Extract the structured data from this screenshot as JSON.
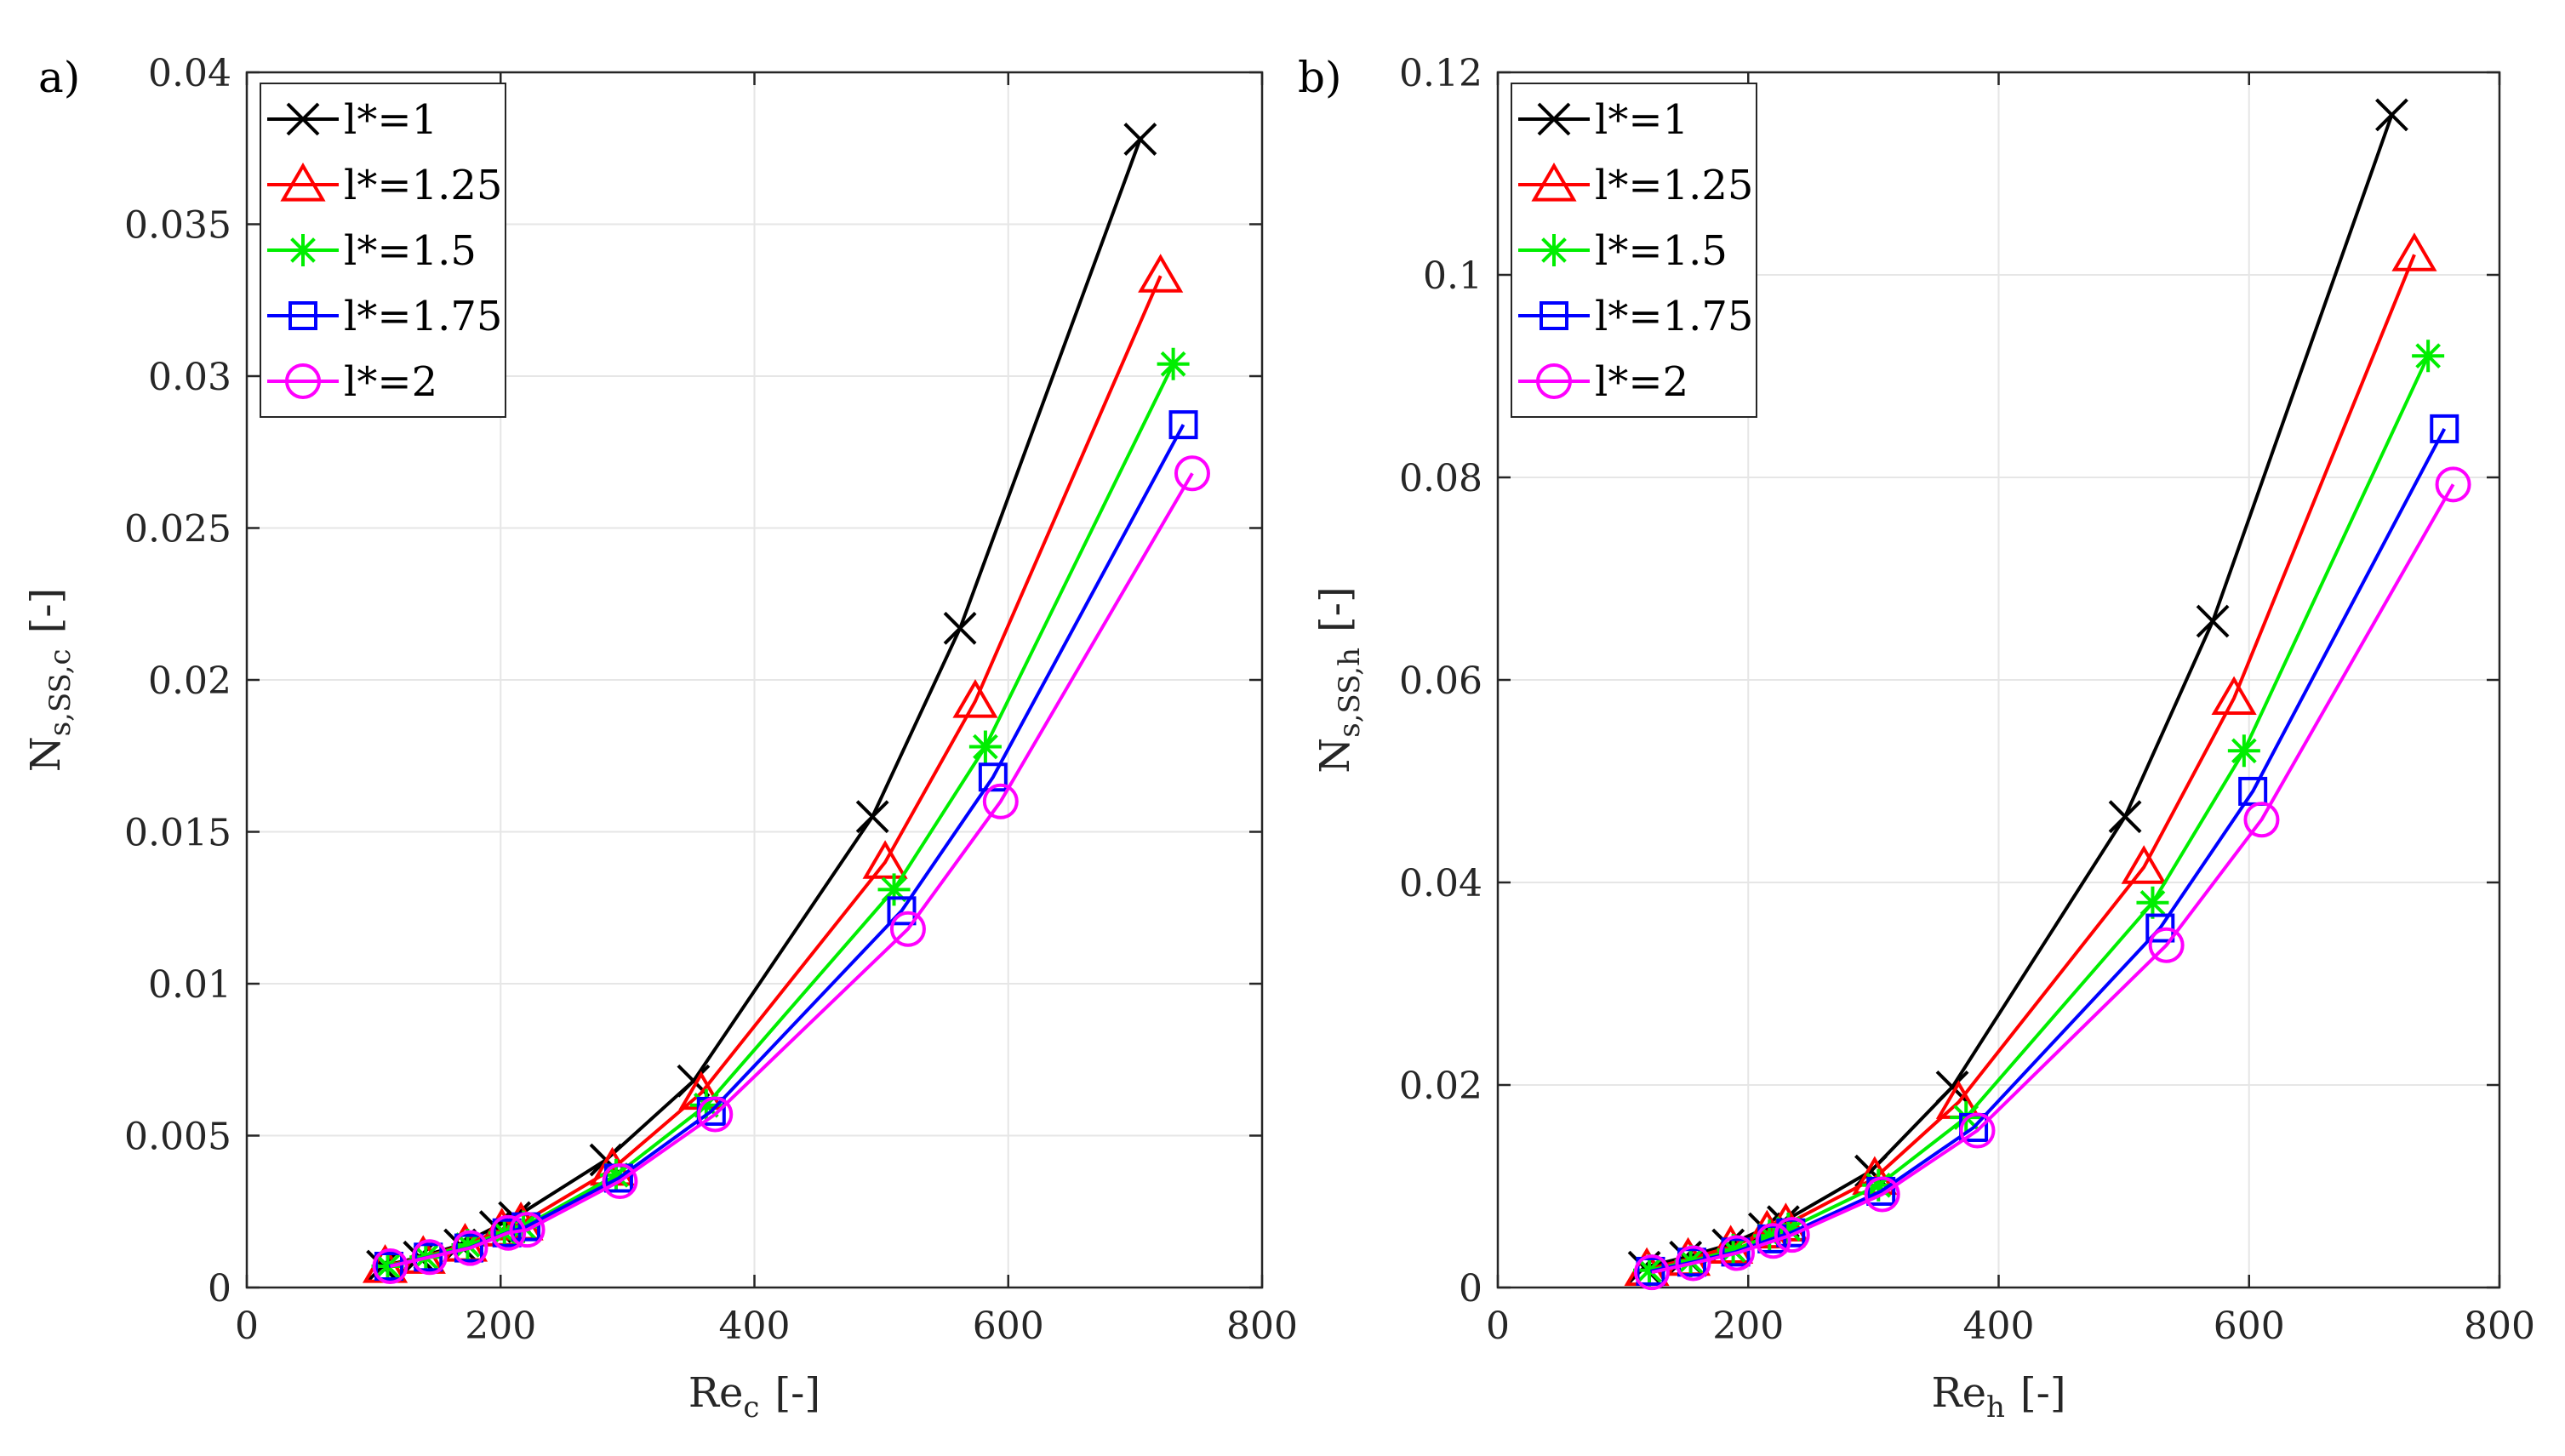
{
  "chart_data": [
    {
      "type": "line",
      "panel_label": "a)",
      "title": "",
      "xlabel": "Re",
      "xlabel_sub": "c",
      "xlabel_unit": "[-]",
      "ylabel": "N",
      "ylabel_sub": "s,SS,c",
      "ylabel_unit": "[-]",
      "xlim": [
        0,
        800
      ],
      "ylim": [
        0,
        0.04
      ],
      "xticks": [
        0,
        200,
        400,
        600,
        800
      ],
      "xtick_labels": [
        "0",
        "200",
        "400",
        "600",
        "800"
      ],
      "yticks": [
        0,
        0.005,
        0.01,
        0.015,
        0.02,
        0.025,
        0.03,
        0.035,
        0.04
      ],
      "ytick_labels": [
        "0",
        "0.005",
        "0.01",
        "0.015",
        "0.02",
        "0.025",
        "0.03",
        "0.035",
        "0.04"
      ],
      "grid": true,
      "legend_position": "top-left",
      "series": [
        {
          "name": "l*=1",
          "color": "#000000",
          "marker": "x",
          "x": [
            107,
            136,
            168,
            196,
            211,
            283,
            352,
            493,
            562,
            704
          ],
          "y": [
            0.0007,
            0.001,
            0.0014,
            0.002,
            0.0023,
            0.0042,
            0.0068,
            0.0155,
            0.0217,
            0.0378
          ]
        },
        {
          "name": "l*=1.25",
          "color": "#ff0000",
          "marker": "triangle",
          "x": [
            109,
            139,
            172,
            201,
            216,
            288,
            358,
            503,
            574,
            720
          ],
          "y": [
            0.0007,
            0.001,
            0.0014,
            0.0019,
            0.0021,
            0.0039,
            0.0064,
            0.014,
            0.0193,
            0.0333
          ]
        },
        {
          "name": "l*=1.5",
          "color": "#00ee00",
          "marker": "asterisk",
          "x": [
            111,
            141,
            174,
            203,
            218,
            291,
            362,
            510,
            582,
            730
          ],
          "y": [
            0.0007,
            0.001,
            0.0014,
            0.0018,
            0.002,
            0.0037,
            0.006,
            0.0131,
            0.0178,
            0.0304
          ]
        },
        {
          "name": "l*=1.75",
          "color": "#0000ff",
          "marker": "square",
          "x": [
            112,
            143,
            175,
            205,
            220,
            293,
            366,
            516,
            588,
            738
          ],
          "y": [
            0.0007,
            0.001,
            0.0013,
            0.0018,
            0.002,
            0.0036,
            0.0058,
            0.0124,
            0.0168,
            0.0284
          ]
        },
        {
          "name": "l*=2",
          "color": "#ff00ff",
          "marker": "circle",
          "x": [
            113,
            144,
            176,
            206,
            221,
            294,
            369,
            521,
            594,
            745
          ],
          "y": [
            0.0007,
            0.001,
            0.0013,
            0.0018,
            0.0019,
            0.0035,
            0.0057,
            0.0118,
            0.016,
            0.0268
          ]
        }
      ]
    },
    {
      "type": "line",
      "panel_label": "b)",
      "title": "",
      "xlabel": "Re",
      "xlabel_sub": "h",
      "xlabel_unit": "[-]",
      "ylabel": "N",
      "ylabel_sub": "s,SS,h",
      "ylabel_unit": "[-]",
      "xlim": [
        0,
        800
      ],
      "ylim": [
        0,
        0.12
      ],
      "xticks": [
        0,
        200,
        400,
        600,
        800
      ],
      "xtick_labels": [
        "0",
        "200",
        "400",
        "600",
        "800"
      ],
      "yticks": [
        0,
        0.02,
        0.04,
        0.06,
        0.08,
        0.1,
        0.12
      ],
      "ytick_labels": [
        "0",
        "0.02",
        "0.04",
        "0.06",
        "0.08",
        "0.1",
        "0.12"
      ],
      "grid": true,
      "legend_position": "top-left",
      "series": [
        {
          "name": "l*=1",
          "color": "#000000",
          "marker": "x",
          "x": [
            117,
            150,
            184,
            213,
            228,
            298,
            363,
            501,
            571,
            714
          ],
          "y": [
            0.002,
            0.003,
            0.0042,
            0.0058,
            0.0065,
            0.0115,
            0.0198,
            0.0465,
            0.0658,
            0.1158
          ]
        },
        {
          "name": "l*=1.25",
          "color": "#ff0000",
          "marker": "triangle",
          "x": [
            119,
            152,
            186,
            215,
            230,
            301,
            368,
            516,
            588,
            732
          ],
          "y": [
            0.0018,
            0.0028,
            0.004,
            0.0055,
            0.0062,
            0.0108,
            0.0183,
            0.0415,
            0.0582,
            0.102
          ]
        },
        {
          "name": "l*=1.5",
          "color": "#00ee00",
          "marker": "asterisk",
          "x": [
            121,
            154,
            188,
            217,
            232,
            304,
            374,
            523,
            596,
            743
          ],
          "y": [
            0.0017,
            0.0026,
            0.0037,
            0.0051,
            0.0058,
            0.0101,
            0.0168,
            0.038,
            0.053,
            0.092
          ]
        },
        {
          "name": "l*=1.75",
          "color": "#0000ff",
          "marker": "square",
          "x": [
            122,
            155,
            190,
            219,
            234,
            306,
            380,
            529,
            603,
            756
          ],
          "y": [
            0.0016,
            0.0025,
            0.0035,
            0.0048,
            0.0054,
            0.0095,
            0.0158,
            0.0355,
            0.049,
            0.0848
          ]
        },
        {
          "name": "l*=2",
          "color": "#ff00ff",
          "marker": "circle",
          "x": [
            123,
            156,
            191,
            220,
            235,
            307,
            383,
            534,
            610,
            763
          ],
          "y": [
            0.0015,
            0.0024,
            0.0034,
            0.0046,
            0.0052,
            0.0092,
            0.0155,
            0.0338,
            0.0462,
            0.0793
          ]
        }
      ]
    }
  ]
}
